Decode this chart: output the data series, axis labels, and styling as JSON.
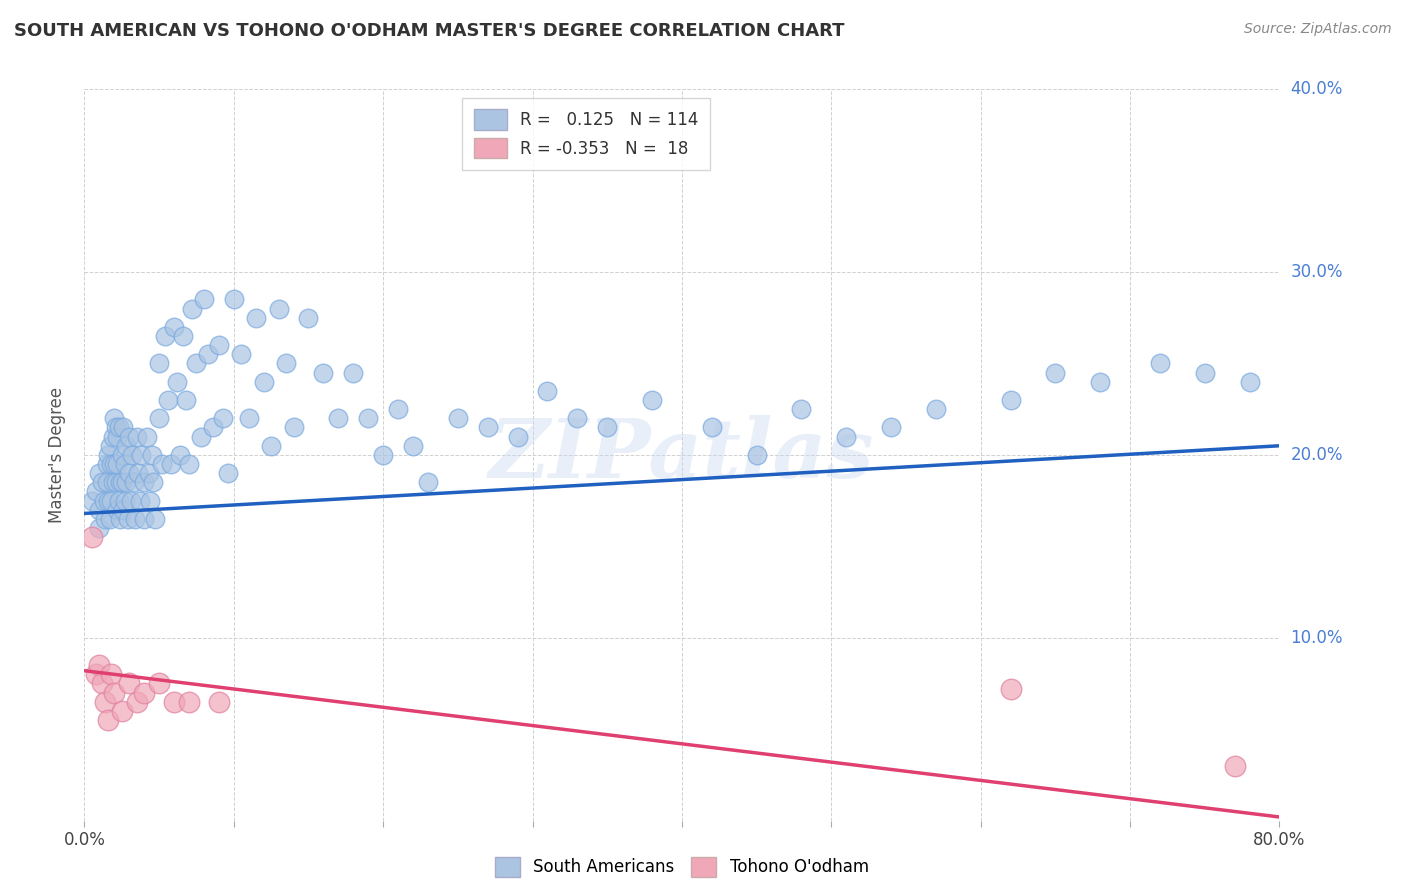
{
  "title": "SOUTH AMERICAN VS TOHONO O'ODHAM MASTER'S DEGREE CORRELATION CHART",
  "source": "Source: ZipAtlas.com",
  "ylabel": "Master's Degree",
  "xlim": [
    0.0,
    0.8
  ],
  "ylim": [
    0.0,
    0.4
  ],
  "xticks": [
    0.0,
    0.1,
    0.2,
    0.3,
    0.4,
    0.5,
    0.6,
    0.7,
    0.8
  ],
  "yticks": [
    0.0,
    0.1,
    0.2,
    0.3,
    0.4
  ],
  "watermark": "ZIPatlas",
  "blue_color": "#aac4e2",
  "pink_color": "#f0a8b8",
  "blue_line_color": "#2060c0",
  "pink_line_color": "#e04070",
  "R_blue": 0.125,
  "N_blue": 114,
  "R_pink": -0.353,
  "N_pink": 18,
  "blue_trend_x": [
    0.0,
    0.8
  ],
  "blue_trend_y": [
    0.168,
    0.205
  ],
  "pink_trend_x": [
    0.0,
    0.8
  ],
  "pink_trend_y": [
    0.082,
    0.002
  ],
  "blue_scatter_x": [
    0.005,
    0.008,
    0.01,
    0.01,
    0.01,
    0.012,
    0.013,
    0.014,
    0.015,
    0.015,
    0.016,
    0.016,
    0.017,
    0.017,
    0.018,
    0.018,
    0.019,
    0.019,
    0.02,
    0.02,
    0.021,
    0.021,
    0.022,
    0.022,
    0.022,
    0.023,
    0.023,
    0.024,
    0.024,
    0.025,
    0.025,
    0.026,
    0.026,
    0.027,
    0.027,
    0.028,
    0.028,
    0.029,
    0.03,
    0.03,
    0.031,
    0.032,
    0.033,
    0.034,
    0.035,
    0.036,
    0.037,
    0.038,
    0.04,
    0.04,
    0.042,
    0.043,
    0.044,
    0.045,
    0.046,
    0.047,
    0.05,
    0.05,
    0.052,
    0.054,
    0.056,
    0.058,
    0.06,
    0.062,
    0.064,
    0.066,
    0.068,
    0.07,
    0.072,
    0.075,
    0.078,
    0.08,
    0.083,
    0.086,
    0.09,
    0.093,
    0.096,
    0.1,
    0.105,
    0.11,
    0.115,
    0.12,
    0.125,
    0.13,
    0.135,
    0.14,
    0.15,
    0.16,
    0.17,
    0.18,
    0.19,
    0.2,
    0.21,
    0.22,
    0.23,
    0.25,
    0.27,
    0.29,
    0.31,
    0.33,
    0.35,
    0.38,
    0.42,
    0.45,
    0.48,
    0.51,
    0.54,
    0.57,
    0.62,
    0.65,
    0.68,
    0.72,
    0.75,
    0.78
  ],
  "blue_scatter_y": [
    0.175,
    0.18,
    0.19,
    0.17,
    0.16,
    0.185,
    0.175,
    0.165,
    0.195,
    0.185,
    0.2,
    0.175,
    0.165,
    0.205,
    0.195,
    0.175,
    0.21,
    0.185,
    0.22,
    0.195,
    0.215,
    0.185,
    0.17,
    0.21,
    0.195,
    0.175,
    0.215,
    0.185,
    0.165,
    0.2,
    0.185,
    0.17,
    0.215,
    0.195,
    0.175,
    0.205,
    0.185,
    0.165,
    0.21,
    0.19,
    0.175,
    0.2,
    0.185,
    0.165,
    0.21,
    0.19,
    0.175,
    0.2,
    0.185,
    0.165,
    0.21,
    0.19,
    0.175,
    0.2,
    0.185,
    0.165,
    0.25,
    0.22,
    0.195,
    0.265,
    0.23,
    0.195,
    0.27,
    0.24,
    0.2,
    0.265,
    0.23,
    0.195,
    0.28,
    0.25,
    0.21,
    0.285,
    0.255,
    0.215,
    0.26,
    0.22,
    0.19,
    0.285,
    0.255,
    0.22,
    0.275,
    0.24,
    0.205,
    0.28,
    0.25,
    0.215,
    0.275,
    0.245,
    0.22,
    0.245,
    0.22,
    0.2,
    0.225,
    0.205,
    0.185,
    0.22,
    0.215,
    0.21,
    0.235,
    0.22,
    0.215,
    0.23,
    0.215,
    0.2,
    0.225,
    0.21,
    0.215,
    0.225,
    0.23,
    0.245,
    0.24,
    0.25,
    0.245,
    0.24
  ],
  "pink_scatter_x": [
    0.005,
    0.008,
    0.01,
    0.012,
    0.014,
    0.016,
    0.018,
    0.02,
    0.025,
    0.03,
    0.035,
    0.04,
    0.05,
    0.06,
    0.07,
    0.09,
    0.62,
    0.77
  ],
  "pink_scatter_y": [
    0.155,
    0.08,
    0.085,
    0.075,
    0.065,
    0.055,
    0.08,
    0.07,
    0.06,
    0.075,
    0.065,
    0.07,
    0.075,
    0.065,
    0.065,
    0.065,
    0.072,
    0.03
  ]
}
